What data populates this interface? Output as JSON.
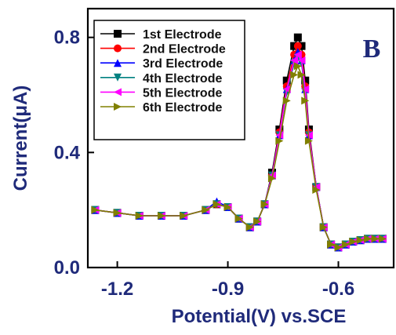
{
  "chart_data": {
    "type": "line",
    "panel_label": "B",
    "xlabel": "Potential(V) vs.SCE",
    "ylabel": "Current(μA)",
    "xlim": [
      -1.28,
      -0.45
    ],
    "ylim": [
      0.0,
      0.9
    ],
    "xticks": [
      -1.2,
      -0.9,
      -0.6
    ],
    "xtick_labels": [
      "-1.2",
      "-0.9",
      "-0.6"
    ],
    "yticks": [
      0.0,
      0.4,
      0.8
    ],
    "ytick_labels": [
      "0.0",
      "0.4",
      "0.8"
    ],
    "legend_position": "top-left",
    "grid": false,
    "series": [
      {
        "name": "1st Electrode",
        "color": "#000000",
        "marker": "square",
        "x": [
          -1.26,
          -1.2,
          -1.14,
          -1.08,
          -1.02,
          -0.96,
          -0.93,
          -0.9,
          -0.87,
          -0.84,
          -0.82,
          -0.8,
          -0.78,
          -0.76,
          -0.74,
          -0.72,
          -0.71,
          -0.7,
          -0.69,
          -0.68,
          -0.66,
          -0.64,
          -0.62,
          -0.6,
          -0.58,
          -0.56,
          -0.54,
          -0.52,
          -0.5,
          -0.48
        ],
        "y": [
          0.2,
          0.19,
          0.18,
          0.18,
          0.18,
          0.2,
          0.22,
          0.21,
          0.17,
          0.14,
          0.16,
          0.22,
          0.33,
          0.48,
          0.65,
          0.77,
          0.8,
          0.77,
          0.65,
          0.48,
          0.28,
          0.14,
          0.08,
          0.07,
          0.08,
          0.09,
          0.095,
          0.1,
          0.1,
          0.1
        ]
      },
      {
        "name": "2nd Electrode",
        "color": "#ff0000",
        "marker": "circle",
        "x": [
          -1.26,
          -1.2,
          -1.14,
          -1.08,
          -1.02,
          -0.96,
          -0.93,
          -0.9,
          -0.87,
          -0.84,
          -0.82,
          -0.8,
          -0.78,
          -0.76,
          -0.74,
          -0.72,
          -0.71,
          -0.7,
          -0.69,
          -0.68,
          -0.66,
          -0.64,
          -0.62,
          -0.6,
          -0.58,
          -0.56,
          -0.54,
          -0.52,
          -0.5,
          -0.48
        ],
        "y": [
          0.2,
          0.19,
          0.18,
          0.18,
          0.18,
          0.2,
          0.22,
          0.21,
          0.17,
          0.14,
          0.16,
          0.22,
          0.32,
          0.47,
          0.63,
          0.74,
          0.77,
          0.74,
          0.63,
          0.47,
          0.28,
          0.14,
          0.08,
          0.07,
          0.08,
          0.09,
          0.095,
          0.1,
          0.1,
          0.1
        ]
      },
      {
        "name": "3rd Electrode",
        "color": "#0000ff",
        "marker": "triangle-up",
        "x": [
          -1.26,
          -1.2,
          -1.14,
          -1.08,
          -1.02,
          -0.96,
          -0.93,
          -0.9,
          -0.87,
          -0.84,
          -0.82,
          -0.8,
          -0.78,
          -0.76,
          -0.74,
          -0.72,
          -0.71,
          -0.7,
          -0.69,
          -0.68,
          -0.66,
          -0.64,
          -0.62,
          -0.6,
          -0.58,
          -0.56,
          -0.54,
          -0.52,
          -0.5,
          -0.48
        ],
        "y": [
          0.2,
          0.19,
          0.18,
          0.18,
          0.18,
          0.2,
          0.23,
          0.21,
          0.17,
          0.14,
          0.16,
          0.22,
          0.32,
          0.46,
          0.62,
          0.72,
          0.75,
          0.72,
          0.62,
          0.46,
          0.28,
          0.14,
          0.08,
          0.07,
          0.08,
          0.09,
          0.095,
          0.1,
          0.1,
          0.1
        ]
      },
      {
        "name": "4th Electrode",
        "color": "#008080",
        "marker": "triangle-down",
        "x": [
          -1.26,
          -1.2,
          -1.14,
          -1.08,
          -1.02,
          -0.96,
          -0.93,
          -0.9,
          -0.87,
          -0.84,
          -0.82,
          -0.8,
          -0.78,
          -0.76,
          -0.74,
          -0.72,
          -0.71,
          -0.7,
          -0.69,
          -0.68,
          -0.66,
          -0.64,
          -0.62,
          -0.6,
          -0.58,
          -0.56,
          -0.54,
          -0.52,
          -0.5,
          -0.48
        ],
        "y": [
          0.2,
          0.19,
          0.18,
          0.18,
          0.18,
          0.2,
          0.22,
          0.21,
          0.17,
          0.14,
          0.16,
          0.22,
          0.32,
          0.46,
          0.61,
          0.71,
          0.73,
          0.71,
          0.61,
          0.46,
          0.28,
          0.14,
          0.08,
          0.07,
          0.08,
          0.09,
          0.095,
          0.1,
          0.1,
          0.1
        ]
      },
      {
        "name": "5th Electrode",
        "color": "#ff00ff",
        "marker": "triangle-left",
        "x": [
          -1.26,
          -1.2,
          -1.14,
          -1.08,
          -1.02,
          -0.96,
          -0.93,
          -0.9,
          -0.87,
          -0.84,
          -0.82,
          -0.8,
          -0.78,
          -0.76,
          -0.74,
          -0.72,
          -0.71,
          -0.7,
          -0.69,
          -0.68,
          -0.66,
          -0.64,
          -0.62,
          -0.6,
          -0.58,
          -0.56,
          -0.54,
          -0.52,
          -0.5,
          -0.48
        ],
        "y": [
          0.2,
          0.19,
          0.18,
          0.18,
          0.18,
          0.2,
          0.22,
          0.21,
          0.17,
          0.14,
          0.16,
          0.22,
          0.32,
          0.46,
          0.62,
          0.72,
          0.74,
          0.72,
          0.62,
          0.46,
          0.28,
          0.14,
          0.08,
          0.07,
          0.08,
          0.09,
          0.095,
          0.1,
          0.1,
          0.1
        ]
      },
      {
        "name": "6th Electrode",
        "color": "#808000",
        "marker": "triangle-right",
        "x": [
          -1.26,
          -1.2,
          -1.14,
          -1.08,
          -1.02,
          -0.96,
          -0.93,
          -0.9,
          -0.87,
          -0.84,
          -0.82,
          -0.8,
          -0.78,
          -0.76,
          -0.74,
          -0.72,
          -0.71,
          -0.7,
          -0.69,
          -0.68,
          -0.66,
          -0.64,
          -0.62,
          -0.6,
          -0.58,
          -0.56,
          -0.54,
          -0.52,
          -0.5,
          -0.48
        ],
        "y": [
          0.2,
          0.19,
          0.18,
          0.18,
          0.18,
          0.2,
          0.22,
          0.21,
          0.17,
          0.14,
          0.16,
          0.22,
          0.31,
          0.44,
          0.58,
          0.67,
          0.7,
          0.67,
          0.58,
          0.44,
          0.27,
          0.14,
          0.08,
          0.07,
          0.08,
          0.09,
          0.095,
          0.1,
          0.1,
          0.1
        ]
      }
    ]
  }
}
